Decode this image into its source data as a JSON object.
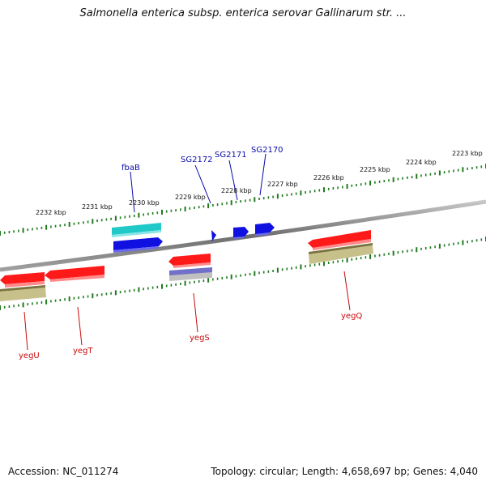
{
  "title": "Salmonella enterica subsp. enterica serovar Gallinarum str. ...",
  "footer": {
    "accession": "Accession: NC_011274",
    "topology": "Topology: circular; Length: 4,658,697 bp; Genes: 4,040"
  },
  "colors": {
    "background": "#ffffff",
    "backbone": "#808080",
    "ticks": "#1f7a1f",
    "cds": "#ff1a1a",
    "gene_blue": "#1010e0",
    "gene_cyan": "#18c8c8",
    "gene_khaki": "#b8b070",
    "gene_lavender": "#8080d0",
    "label_blue": "#0a0aa8",
    "label_red": "#c80a0a"
  },
  "kbp_ticks": [
    "2232 kbp",
    "2231 kbp",
    "2230 kbp",
    "2229 kbp",
    "2228 kbp",
    "2227 kbp",
    "2226 kbp",
    "2225 kbp",
    "2224 kbp",
    "2223 kbp"
  ],
  "genes_forward": [
    {
      "label": "fbaB",
      "color_key": "gene_blue",
      "companion": "gene_cyan"
    },
    {
      "label": "SG2172",
      "color_key": "gene_blue"
    },
    {
      "label": "SG2171",
      "color_key": "gene_blue"
    },
    {
      "label": "SG2170",
      "color_key": "gene_blue"
    }
  ],
  "genes_reverse": [
    {
      "label": "yegU",
      "color_key": "cds",
      "companion": "gene_khaki"
    },
    {
      "label": "yegT",
      "color_key": "cds"
    },
    {
      "label": "yegS",
      "color_key": "cds",
      "companion": "gene_lavender"
    },
    {
      "label": "yegQ",
      "color_key": "cds",
      "companion": "gene_khaki"
    }
  ]
}
